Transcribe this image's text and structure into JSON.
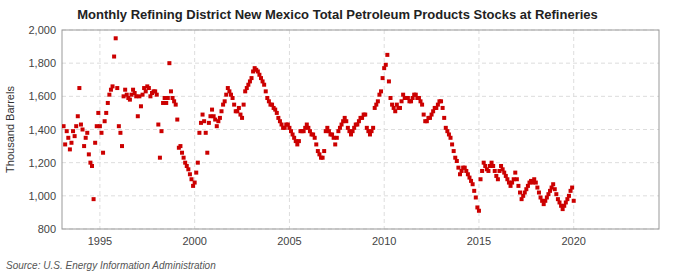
{
  "chart_data": {
    "type": "scatter",
    "title": "Monthly Refining District New Mexico Total Petroleum Products Stocks at Refineries",
    "y_label": "Thousand Barrels",
    "source": "Source: U.S. Energy Information Administration",
    "color": "#cc0000",
    "marker": "square",
    "grid": true,
    "xlim": [
      1993.0,
      2024.5
    ],
    "xticks": [
      1995,
      2000,
      2005,
      2010,
      2015,
      2020
    ],
    "ylim": [
      800,
      2000
    ],
    "yticks": [
      800,
      {
        "value": 1000,
        "label": "1,000"
      },
      {
        "value": 1200,
        "label": "1,200"
      },
      {
        "value": 1400,
        "label": "1,400"
      },
      {
        "value": 1600,
        "label": "1,600"
      },
      {
        "value": 1800,
        "label": "1,800"
      },
      {
        "value": 2000,
        "label": "2,000"
      }
    ],
    "x": [
      1993.083,
      1993.166333,
      1993.249667,
      1993.333,
      1993.416333,
      1993.499667,
      1993.583,
      1993.666333,
      1993.749667,
      1993.833,
      1993.916333,
      1993.999667,
      1994.083,
      1994.166333,
      1994.249667,
      1994.333,
      1994.416333,
      1994.499667,
      1994.583,
      1994.666333,
      1994.749667,
      1994.833,
      1994.916333,
      1994.999667,
      1995.083,
      1995.166333,
      1995.249667,
      1995.333,
      1995.416333,
      1995.499667,
      1995.583,
      1995.666333,
      1995.749667,
      1995.833,
      1995.916333,
      1995.999667,
      1996.083,
      1996.166333,
      1996.249667,
      1996.333,
      1996.416333,
      1996.499667,
      1996.583,
      1996.666333,
      1996.749667,
      1996.833,
      1996.916333,
      1996.999667,
      1997.083,
      1997.166333,
      1997.249667,
      1997.333,
      1997.416333,
      1997.499667,
      1997.583,
      1997.666333,
      1997.749667,
      1997.833,
      1997.916333,
      1997.999667,
      1998.083,
      1998.166333,
      1998.249667,
      1998.333,
      1998.416333,
      1998.499667,
      1998.583,
      1998.666333,
      1998.749667,
      1998.833,
      1998.916333,
      1998.999667,
      1999.083,
      1999.166333,
      1999.249667,
      1999.333,
      1999.416333,
      1999.499667,
      1999.583,
      1999.666333,
      1999.749667,
      1999.833,
      1999.916333,
      1999.999667,
      2000.083,
      2000.166333,
      2000.249667,
      2000.333,
      2000.416333,
      2000.499667,
      2000.583,
      2000.666333,
      2000.749667,
      2000.833,
      2000.916333,
      2000.999667,
      2001.083,
      2001.166333,
      2001.249667,
      2001.333,
      2001.416333,
      2001.499667,
      2001.583,
      2001.666333,
      2001.749667,
      2001.833,
      2001.916333,
      2001.999667,
      2002.083,
      2002.166333,
      2002.249667,
      2002.333,
      2002.416333,
      2002.499667,
      2002.583,
      2002.666333,
      2002.749667,
      2002.833,
      2002.916333,
      2002.999667,
      2003.083,
      2003.166333,
      2003.249667,
      2003.333,
      2003.416333,
      2003.499667,
      2003.583,
      2003.666333,
      2003.749667,
      2003.833,
      2003.916333,
      2003.999667,
      2004.083,
      2004.166333,
      2004.249667,
      2004.333,
      2004.416333,
      2004.499667,
      2004.583,
      2004.666333,
      2004.749667,
      2004.833,
      2004.916333,
      2004.999667,
      2005.083,
      2005.166333,
      2005.249667,
      2005.333,
      2005.416333,
      2005.499667,
      2005.583,
      2005.666333,
      2005.749667,
      2005.833,
      2005.916333,
      2005.999667,
      2006.083,
      2006.166333,
      2006.249667,
      2006.333,
      2006.416333,
      2006.499667,
      2006.583,
      2006.666333,
      2006.749667,
      2006.833,
      2006.916333,
      2006.999667,
      2007.083,
      2007.166333,
      2007.249667,
      2007.333,
      2007.416333,
      2007.499667,
      2007.583,
      2007.666333,
      2007.749667,
      2007.833,
      2007.916333,
      2007.999667,
      2008.083,
      2008.166333,
      2008.249667,
      2008.333,
      2008.416333,
      2008.499667,
      2008.583,
      2008.666333,
      2008.749667,
      2008.833,
      2008.916333,
      2008.999667,
      2009.083,
      2009.166333,
      2009.249667,
      2009.333,
      2009.416333,
      2009.499667,
      2009.583,
      2009.666333,
      2009.749667,
      2009.833,
      2009.916333,
      2009.999667,
      2010.083,
      2010.166333,
      2010.249667,
      2010.333,
      2010.416333,
      2010.499667,
      2010.583,
      2010.666333,
      2010.749667,
      2010.833,
      2010.916333,
      2010.999667,
      2011.083,
      2011.166333,
      2011.249667,
      2011.333,
      2011.416333,
      2011.499667,
      2011.583,
      2011.666333,
      2011.749667,
      2011.833,
      2011.916333,
      2011.999667,
      2012.083,
      2012.166333,
      2012.249667,
      2012.333,
      2012.416333,
      2012.499667,
      2012.583,
      2012.666333,
      2012.749667,
      2012.833,
      2012.916333,
      2012.999667,
      2013.083,
      2013.166333,
      2013.249667,
      2013.333,
      2013.416333,
      2013.499667,
      2013.583,
      2013.666333,
      2013.749667,
      2013.833,
      2013.916333,
      2013.999667,
      2014.083,
      2014.166333,
      2014.249667,
      2014.333,
      2014.416333,
      2014.499667,
      2014.583,
      2014.666333,
      2014.749667,
      2014.833,
      2014.916333,
      2014.999667,
      2015.083,
      2015.166333,
      2015.249667,
      2015.333,
      2015.416333,
      2015.499667,
      2015.583,
      2015.666333,
      2015.749667,
      2015.833,
      2015.916333,
      2015.999667,
      2016.083,
      2016.166333,
      2016.249667,
      2016.333,
      2016.416333,
      2016.499667,
      2016.583,
      2016.666333,
      2016.749667,
      2016.833,
      2016.916333,
      2016.999667,
      2017.083,
      2017.166333,
      2017.249667,
      2017.333,
      2017.416333,
      2017.499667,
      2017.583,
      2017.666333,
      2017.749667,
      2017.833,
      2017.916333,
      2017.999667,
      2018.083,
      2018.166333,
      2018.249667,
      2018.333,
      2018.416333,
      2018.499667,
      2018.583,
      2018.666333,
      2018.749667,
      2018.833,
      2018.916333,
      2018.999667,
      2019.083,
      2019.166333,
      2019.249667,
      2019.333,
      2019.416333,
      2019.499667,
      2019.583,
      2019.666333,
      2019.749667,
      2019.833,
      2019.916333,
      2019.999667
    ],
    "values": [
      1420,
      1310,
      1390,
      1350,
      1280,
      1320,
      1390,
      1360,
      1420,
      1480,
      1650,
      1430,
      1400,
      1300,
      1350,
      1380,
      1250,
      1200,
      1180,
      980,
      1320,
      1420,
      1500,
      1420,
      1380,
      1260,
      1450,
      1500,
      1560,
      1610,
      1640,
      1660,
      1840,
      1950,
      1650,
      1420,
      1380,
      1300,
      1600,
      1640,
      1610,
      1590,
      1580,
      1610,
      1640,
      1620,
      1600,
      1480,
      1600,
      1540,
      1610,
      1650,
      1630,
      1660,
      1650,
      1600,
      1620,
      1630,
      1630,
      1610,
      1430,
      1230,
      1390,
      1560,
      1590,
      1560,
      1590,
      1800,
      1630,
      1590,
      1570,
      1550,
      1460,
      1290,
      1300,
      1260,
      1230,
      1200,
      1180,
      1160,
      1130,
      1100,
      1060,
      1080,
      1140,
      1200,
      1380,
      1440,
      1490,
      1450,
      1380,
      1260,
      1440,
      1480,
      1520,
      1480,
      1460,
      1420,
      1450,
      1470,
      1510,
      1550,
      1570,
      1610,
      1650,
      1630,
      1610,
      1590,
      1550,
      1510,
      1510,
      1530,
      1490,
      1470,
      1550,
      1630,
      1650,
      1670,
      1690,
      1710,
      1750,
      1770,
      1760,
      1750,
      1730,
      1710,
      1690,
      1670,
      1630,
      1590,
      1570,
      1550,
      1550,
      1530,
      1520,
      1500,
      1470,
      1450,
      1430,
      1410,
      1410,
      1430,
      1430,
      1410,
      1390,
      1370,
      1350,
      1330,
      1310,
      1330,
      1390,
      1390,
      1390,
      1410,
      1430,
      1410,
      1390,
      1370,
      1370,
      1350,
      1310,
      1270,
      1250,
      1230,
      1230,
      1270,
      1390,
      1410,
      1390,
      1370,
      1370,
      1350,
      1310,
      1350,
      1390,
      1410,
      1430,
      1450,
      1470,
      1450,
      1410,
      1390,
      1370,
      1390,
      1410,
      1430,
      1430,
      1450,
      1470,
      1470,
      1490,
      1490,
      1410,
      1390,
      1370,
      1390,
      1410,
      1530,
      1550,
      1570,
      1610,
      1630,
      1710,
      1770,
      1790,
      1850,
      1690,
      1590,
      1550,
      1530,
      1510,
      1550,
      1530,
      1530,
      1570,
      1610,
      1590,
      1590,
      1590,
      1570,
      1570,
      1590,
      1610,
      1610,
      1590,
      1590,
      1570,
      1550,
      1490,
      1450,
      1450,
      1470,
      1470,
      1490,
      1510,
      1530,
      1530,
      1550,
      1570,
      1570,
      1530,
      1470,
      1410,
      1390,
      1370,
      1350,
      1310,
      1270,
      1230,
      1210,
      1170,
      1130,
      1150,
      1170,
      1170,
      1150,
      1130,
      1110,
      1090,
      1070,
      1030,
      990,
      930,
      910,
      1100,
      1150,
      1200,
      1180,
      1160,
      1150,
      1180,
      1200,
      1180,
      1150,
      1120,
      1100,
      1150,
      1180,
      1160,
      1140,
      1120,
      1100,
      1080,
      1060,
      1080,
      1100,
      1140,
      1100,
      1060,
      1020,
      980,
      1000,
      1020,
      1040,
      1060,
      1080,
      1090,
      1080,
      1100,
      1080,
      1050,
      1020,
      990,
      970,
      950,
      970,
      990,
      1010,
      1030,
      1050,
      1070,
      1040,
      1010,
      980,
      960,
      940,
      920,
      940,
      960,
      980,
      1000,
      1030,
      1050,
      970
    ]
  }
}
